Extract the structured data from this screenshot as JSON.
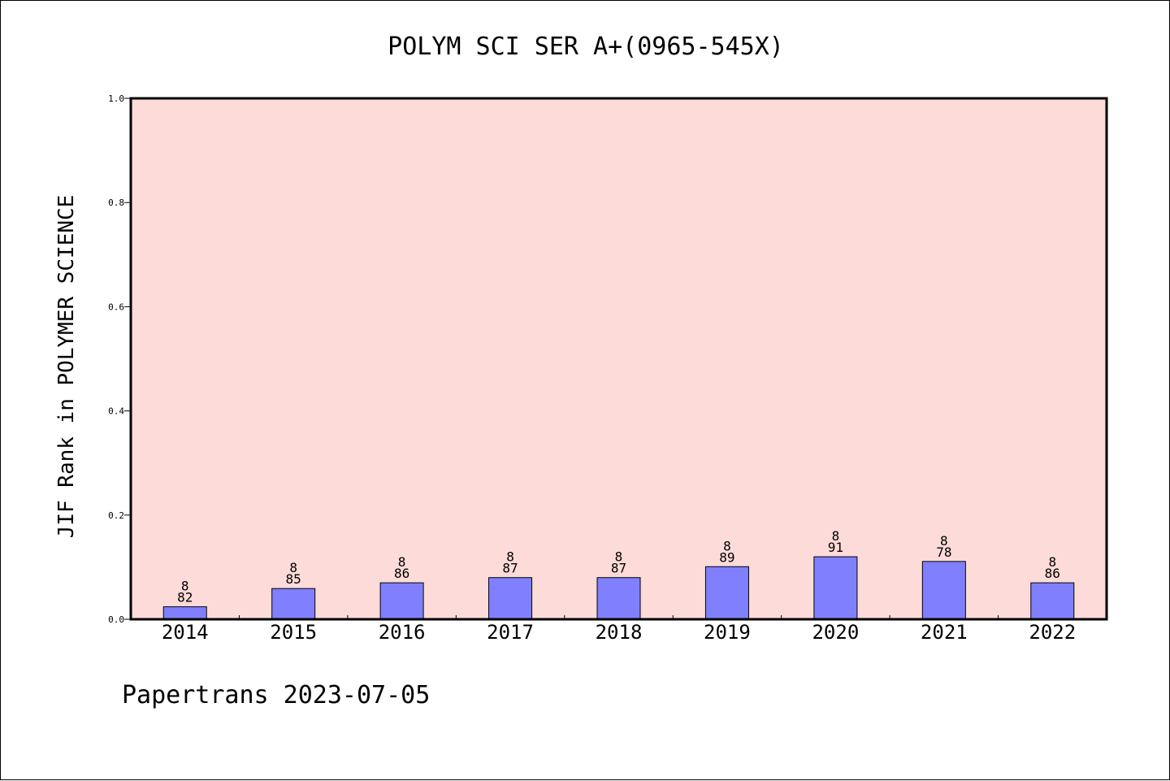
{
  "chart_data": {
    "type": "bar",
    "title": "POLYM SCI SER A+(0965-545X)",
    "xlabel": "",
    "ylabel": "JIF Rank in POLYMER SCIENCE",
    "ylim": [
      0,
      1.0
    ],
    "yticks": [
      "0.0",
      "0.2",
      "0.4",
      "0.6",
      "0.8",
      "1.0"
    ],
    "categories": [
      "2014",
      "2015",
      "2016",
      "2017",
      "2018",
      "2019",
      "2020",
      "2021",
      "2022"
    ],
    "values": [
      0.024,
      0.059,
      0.07,
      0.08,
      0.08,
      0.101,
      0.12,
      0.111,
      0.07
    ],
    "labels_top": [
      "8",
      "8",
      "8",
      "8",
      "8",
      "8",
      "8",
      "8",
      "8"
    ],
    "labels_bottom": [
      "82",
      "85",
      "86",
      "87",
      "87",
      "89",
      "91",
      "78",
      "86"
    ],
    "grid": false,
    "colors": {
      "plot_background": "#fddbd8",
      "bar_fill": "#8080ff",
      "bar_stroke": "#000000"
    }
  },
  "footer": "Papertrans 2023-07-05"
}
